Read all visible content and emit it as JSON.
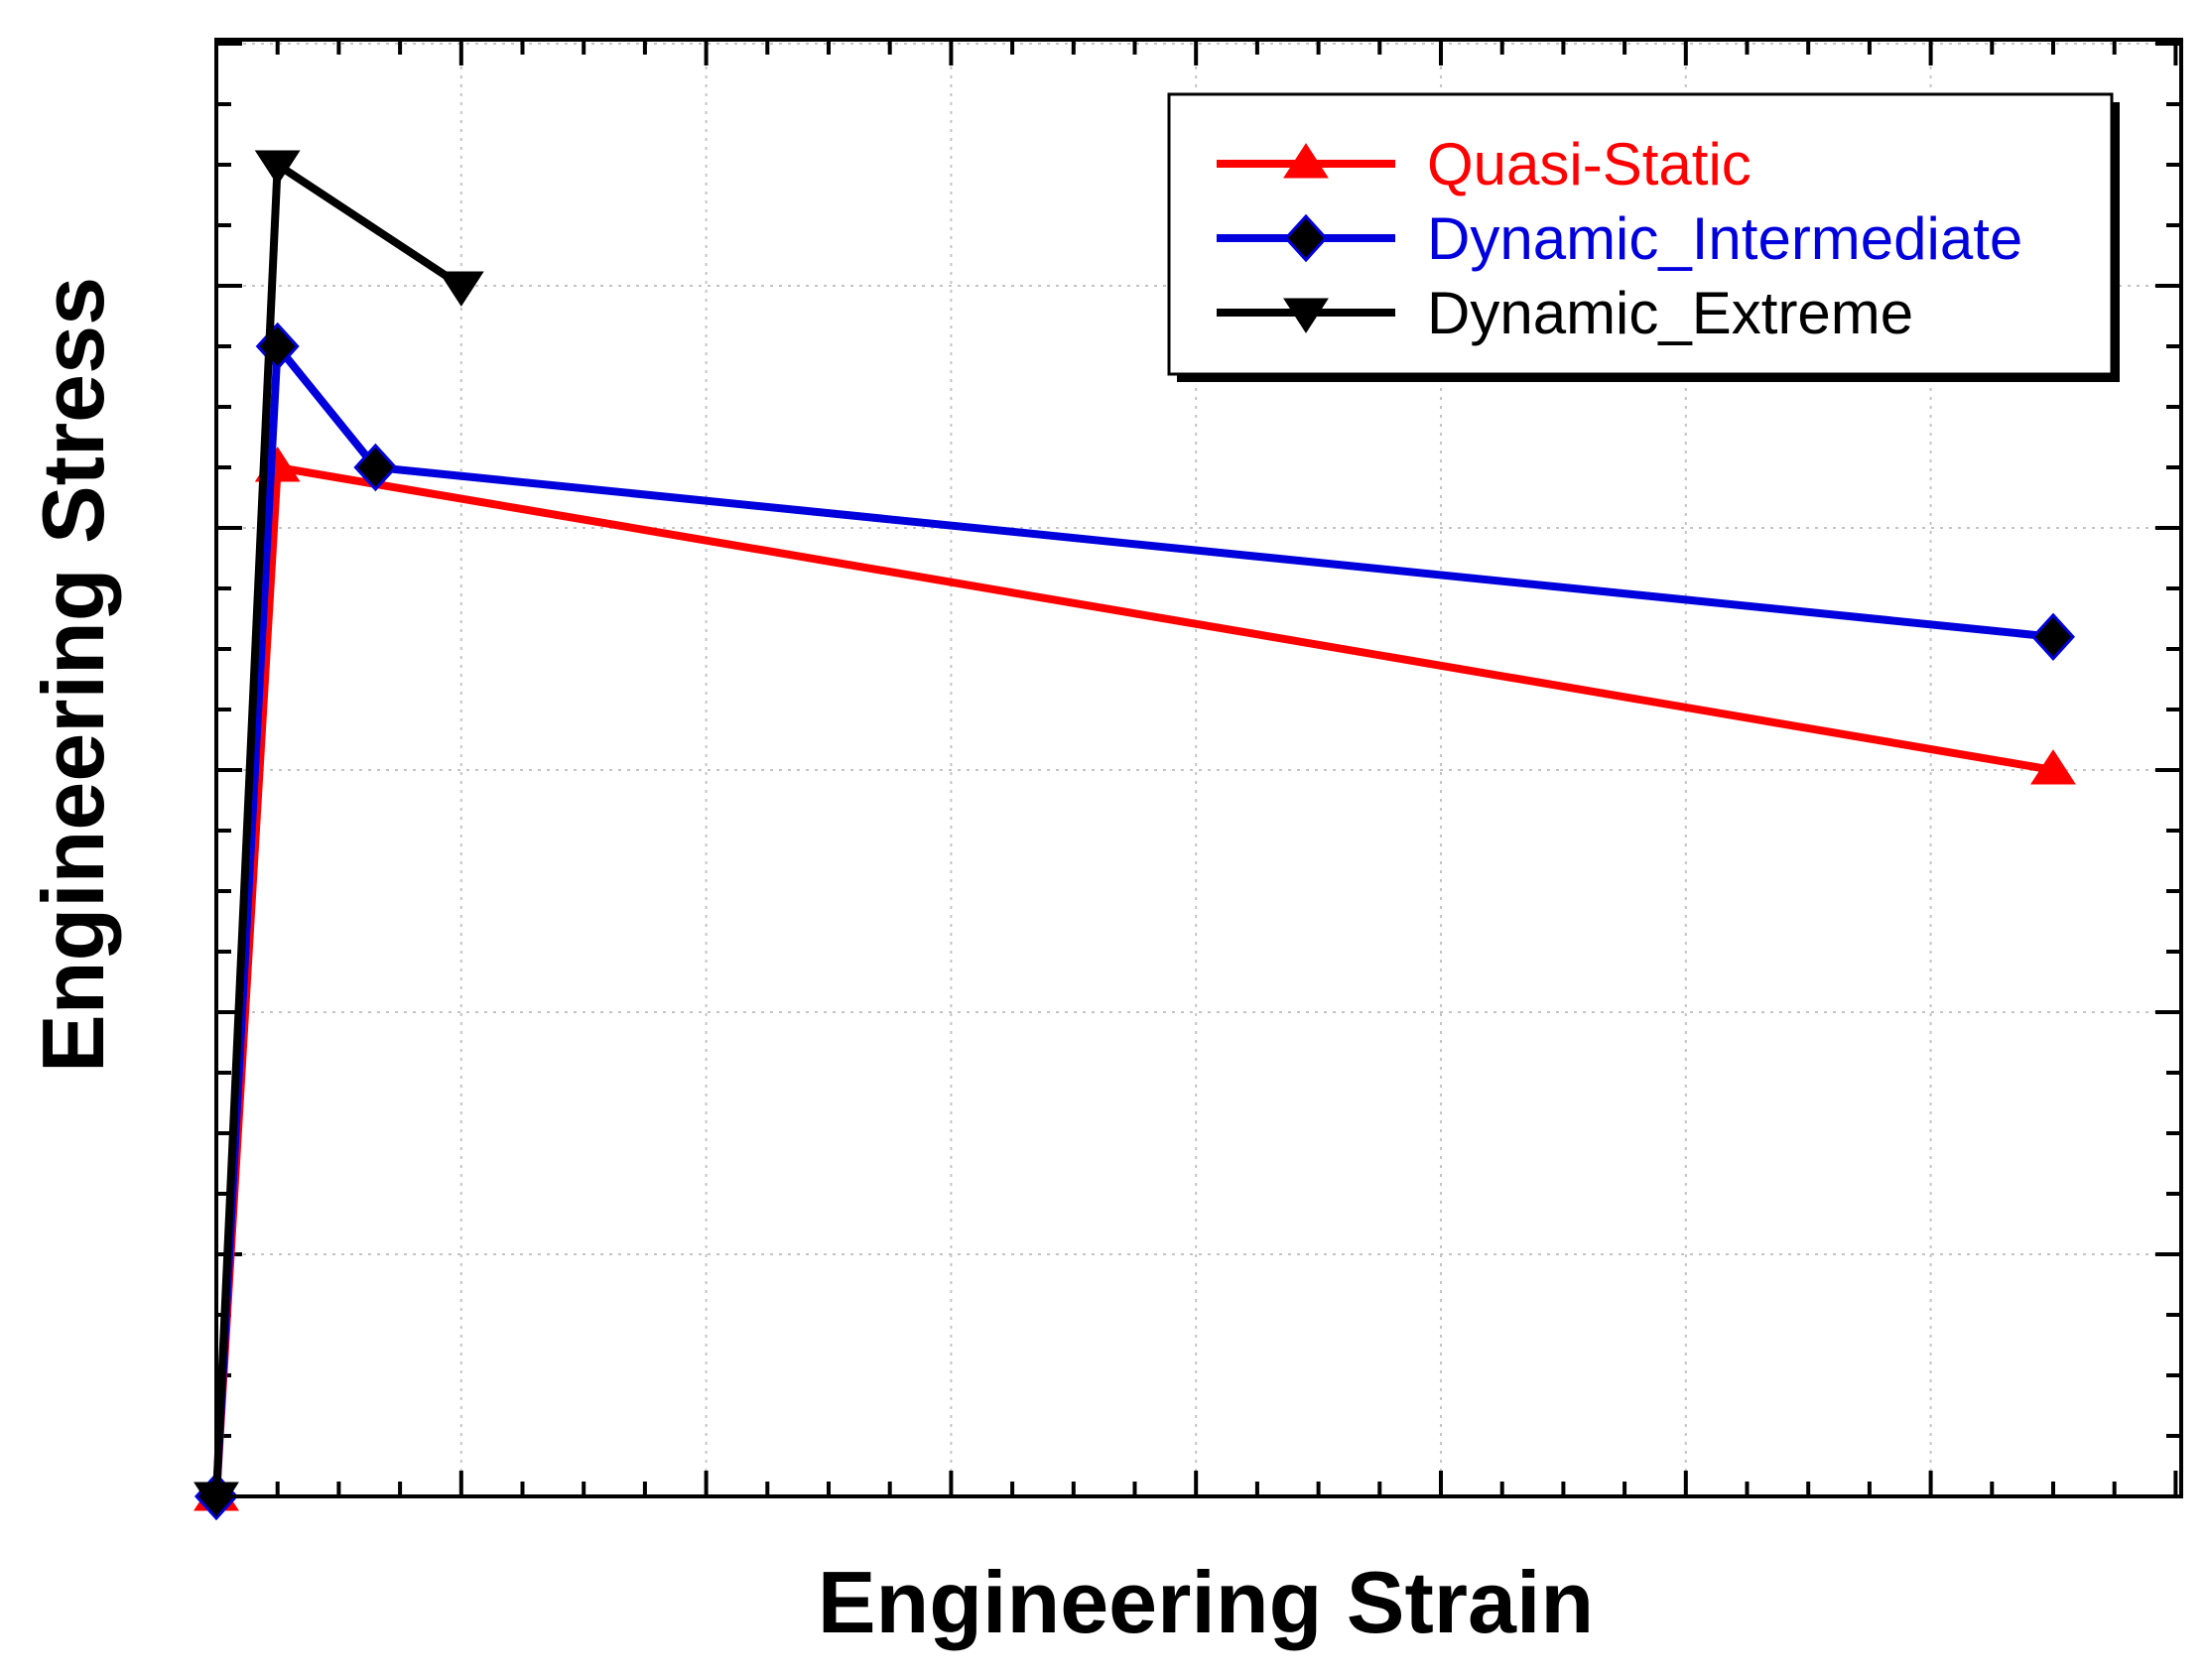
{
  "chart_data": {
    "type": "line",
    "title": "",
    "xlabel": "Engineering Strain",
    "ylabel": "Engineering Stress",
    "xlim": [
      0,
      16
    ],
    "ylim": [
      0,
      12
    ],
    "x_tick_labels": [],
    "y_tick_labels": [],
    "grid": true,
    "legend_position": "top-right",
    "series": [
      {
        "name": "Quasi-Static",
        "color": "#ff0000",
        "marker": "triangle-up",
        "x": [
          0,
          0.5,
          15
        ],
        "y": [
          0,
          8.5,
          6.0
        ]
      },
      {
        "name": "Dynamic_Intermediate",
        "color": "#0000dd",
        "text_color": "#0000dd",
        "marker": "diamond",
        "marker_color": "#000000",
        "x": [
          0,
          0.5,
          1.3,
          15
        ],
        "y": [
          0,
          9.5,
          8.5,
          7.1
        ]
      },
      {
        "name": "Dynamic_Extreme",
        "color": "#000000",
        "marker": "triangle-down",
        "x": [
          0,
          0.5,
          2.0
        ],
        "y": [
          0,
          11.0,
          10.0
        ]
      }
    ]
  }
}
